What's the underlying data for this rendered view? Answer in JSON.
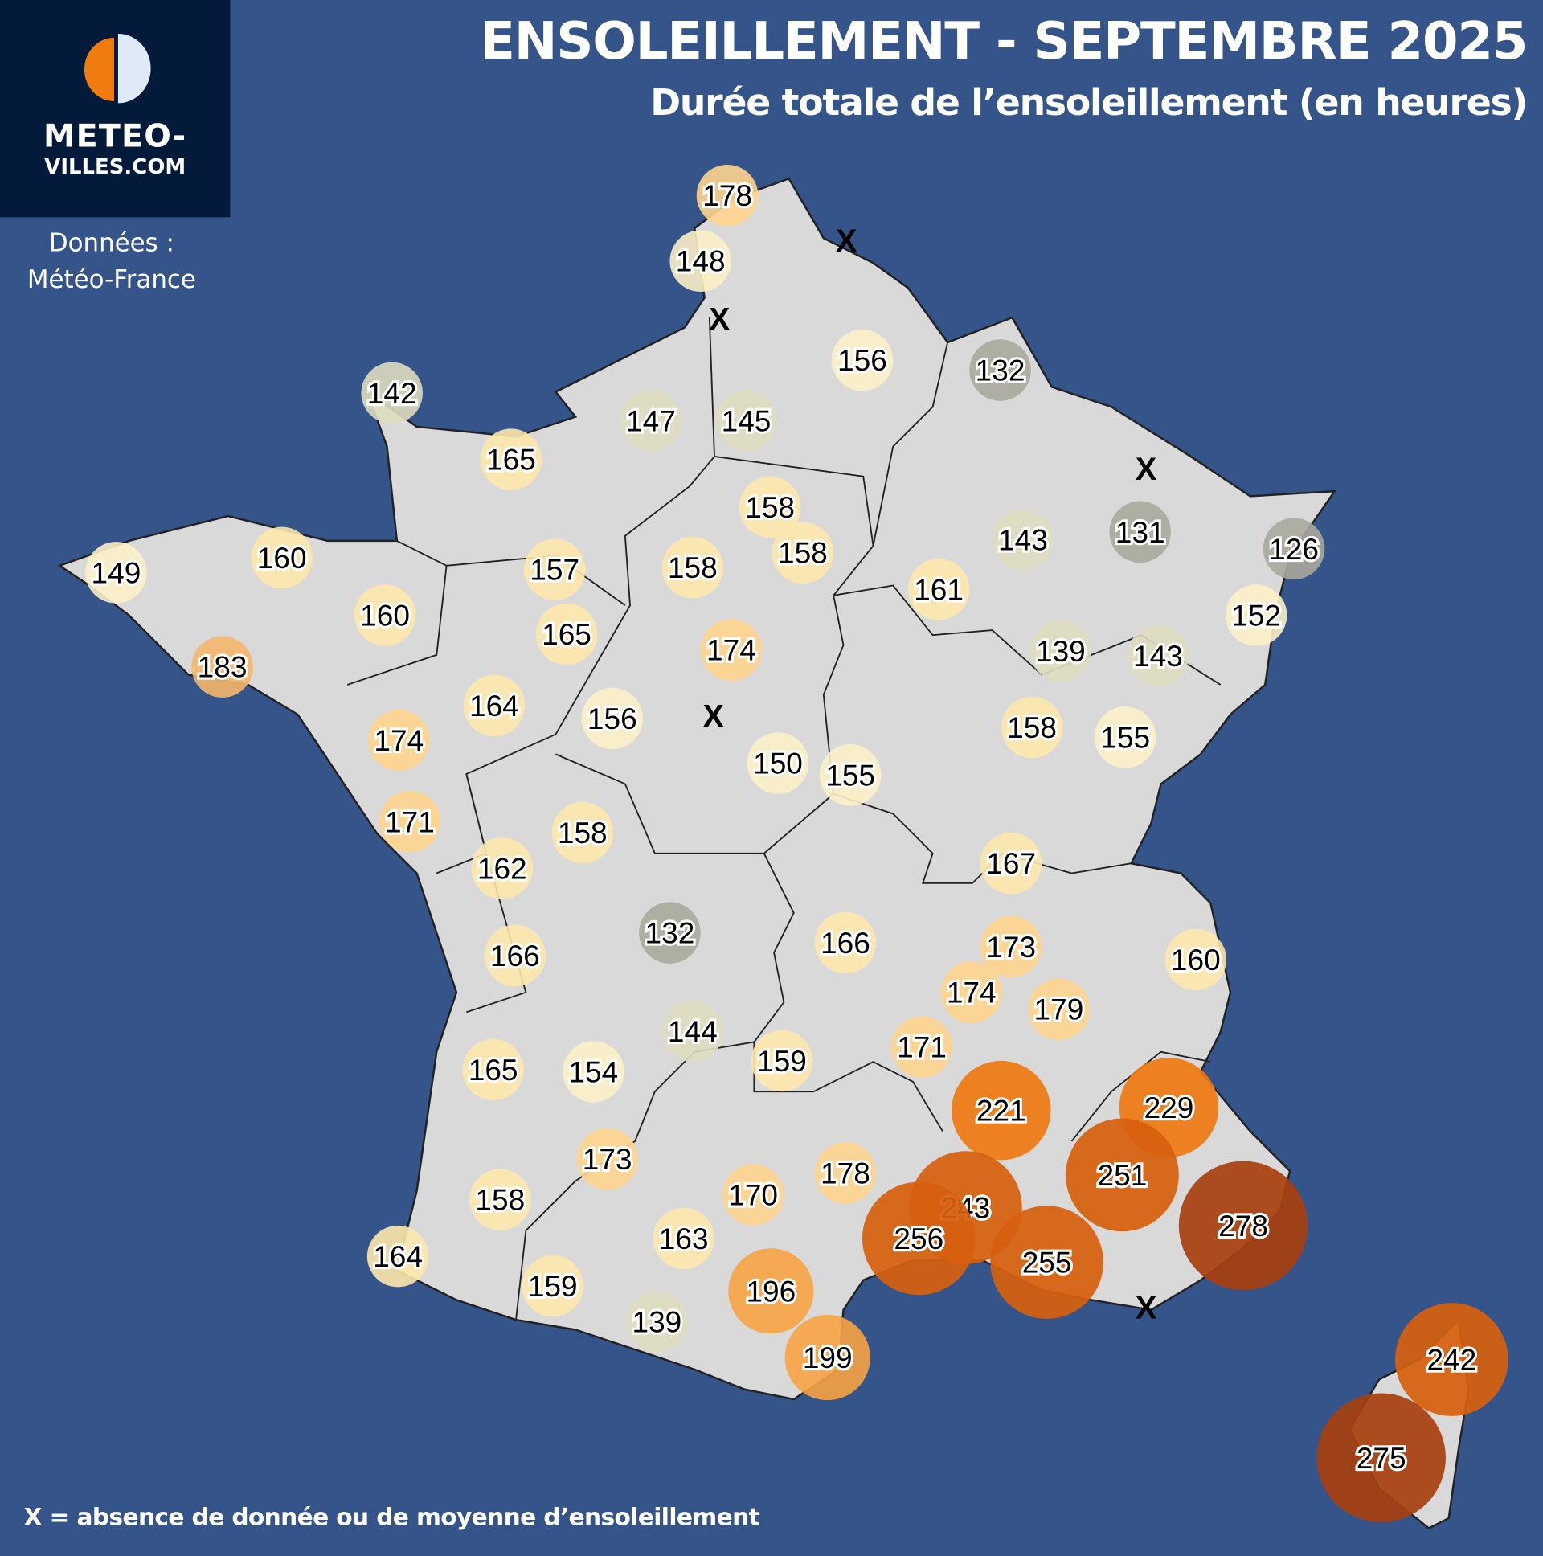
{
  "header": {
    "title": "ENSOLEILLEMENT - SEPTEMBRE 2025",
    "subtitle": "Durée totale de l’ensoleillement (en heures)"
  },
  "logo": {
    "line1": "METEO-",
    "line2": "VILLES.COM",
    "colors": {
      "left": "#f07c10",
      "right": "#e0eaf6",
      "background": "#031a3a"
    }
  },
  "source": {
    "line1": "Données :",
    "line2": "Météo-France"
  },
  "legend": {
    "text": "X = absence de donnée ou de moyenne d’ensoleillement",
    "missing_marker": "X"
  },
  "colors": {
    "background": "#355489",
    "land": "#d9d9d9",
    "border": "#222222"
  },
  "stations": [
    178,
    148,
    156,
    132,
    142,
    147,
    145,
    165,
    158,
    158,
    143,
    131,
    126,
    149,
    160,
    157,
    158,
    161,
    152,
    160,
    165,
    174,
    139,
    143,
    183,
    164,
    156,
    174,
    158,
    155,
    150,
    155,
    171,
    158,
    162,
    167,
    132,
    166,
    173,
    160,
    166,
    174,
    179,
    144,
    171,
    165,
    154,
    159,
    221,
    229,
    251,
    173,
    178,
    170,
    158,
    243,
    256,
    255,
    278,
    163,
    164,
    159,
    196,
    139,
    199,
    242,
    275
  ],
  "missing_count_markers": [
    "X",
    "X",
    "X",
    "X",
    "X"
  ]
}
